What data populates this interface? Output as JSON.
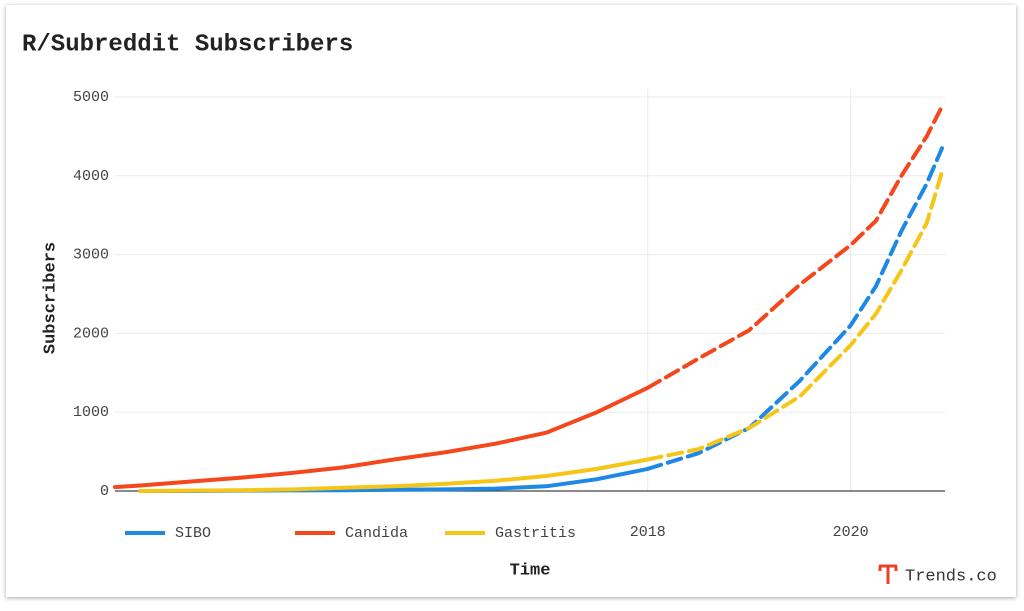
{
  "chart_data": {
    "type": "line",
    "title": "R/Subreddit Subscribers",
    "xlabel": "Time",
    "ylabel": "Subscribers",
    "watermark": "Trends.co",
    "x": [
      2012.75,
      2013,
      2013.5,
      2014,
      2014.5,
      2015,
      2015.5,
      2016,
      2016.5,
      2017,
      2017.5,
      2018,
      2018.5,
      2019,
      2019.5,
      2020,
      2020.25,
      2020.5,
      2020.75,
      2020.9
    ],
    "series": [
      {
        "name": "SIBO",
        "color": "#1e88e5",
        "values": [
          null,
          0,
          0,
          5,
          8,
          10,
          15,
          20,
          30,
          60,
          150,
          280,
          480,
          800,
          1400,
          2100,
          2600,
          3300,
          3900,
          4350
        ]
      },
      {
        "name": "Candida",
        "color": "#f4471c",
        "values": [
          50,
          70,
          120,
          170,
          230,
          300,
          400,
          490,
          600,
          740,
          1000,
          1310,
          1680,
          2040,
          2620,
          3120,
          3430,
          4000,
          4500,
          4880
        ]
      },
      {
        "name": "Gastritis",
        "color": "#f5c518",
        "values": [
          null,
          0,
          5,
          10,
          20,
          40,
          60,
          90,
          130,
          190,
          280,
          400,
          530,
          800,
          1200,
          1850,
          2250,
          2800,
          3400,
          4050
        ]
      }
    ],
    "forecast_from": 2018,
    "xlim": [
      2012.75,
      2020.93
    ],
    "xticks": [
      2018,
      2020
    ],
    "ylim": [
      0,
      5000
    ],
    "yticks": [
      0,
      1000,
      2000,
      3000,
      4000,
      5000
    ],
    "grid": true,
    "legend": "bottom-left"
  }
}
